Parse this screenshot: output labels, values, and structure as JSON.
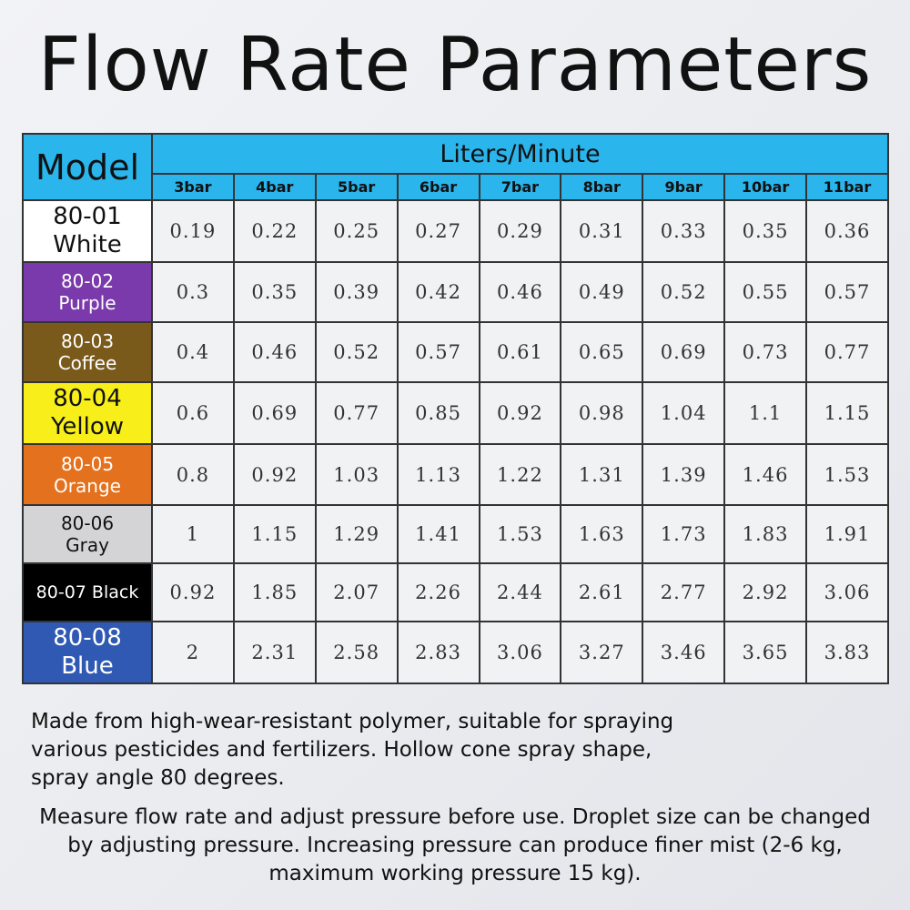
{
  "title": "Flow Rate Parameters",
  "table": {
    "model_header": "Model",
    "unit_header": "Liters/Minute",
    "pressures": [
      "3bar",
      "4bar",
      "5bar",
      "6bar",
      "7bar",
      "8bar",
      "9bar",
      "10bar",
      "11bar"
    ],
    "rows": [
      {
        "model": "80-01",
        "color": "White",
        "bg": "#ffffff",
        "fg": "#111111",
        "values": [
          "0.19",
          "0.22",
          "0.25",
          "0.27",
          "0.29",
          "0.31",
          "0.33",
          "0.35",
          "0.36"
        ]
      },
      {
        "model": "80-02",
        "color": "Purple",
        "bg": "#7b3aab",
        "fg": "#ffffff",
        "values": [
          "0.3",
          "0.35",
          "0.39",
          "0.42",
          "0.46",
          "0.49",
          "0.52",
          "0.55",
          "0.57"
        ]
      },
      {
        "model": "80-03",
        "color": "Coffee",
        "bg": "#7a5a1a",
        "fg": "#ffffff",
        "values": [
          "0.4",
          "0.46",
          "0.52",
          "0.57",
          "0.61",
          "0.65",
          "0.69",
          "0.73",
          "0.77"
        ]
      },
      {
        "model": "80-04",
        "color": "Yellow",
        "bg": "#f7ee1a",
        "fg": "#111111",
        "values": [
          "0.6",
          "0.69",
          "0.77",
          "0.85",
          "0.92",
          "0.98",
          "1.04",
          "1.1",
          "1.15"
        ]
      },
      {
        "model": "80-05",
        "color": "Orange",
        "bg": "#e4711e",
        "fg": "#ffffff",
        "values": [
          "0.8",
          "0.92",
          "1.03",
          "1.13",
          "1.22",
          "1.31",
          "1.39",
          "1.46",
          "1.53"
        ]
      },
      {
        "model": "80-06",
        "color": "Gray",
        "bg": "#d4d4d6",
        "fg": "#111111",
        "values": [
          "1",
          "1.15",
          "1.29",
          "1.41",
          "1.53",
          "1.63",
          "1.73",
          "1.83",
          "1.91"
        ]
      },
      {
        "model": "80-07 Black",
        "color": "",
        "bg": "#000000",
        "fg": "#ffffff",
        "values": [
          "0.92",
          "1.85",
          "2.07",
          "2.26",
          "2.44",
          "2.61",
          "2.77",
          "2.92",
          "3.06"
        ]
      },
      {
        "model": "80-08",
        "color": "Blue",
        "bg": "#2f59b3",
        "fg": "#ffffff",
        "values": [
          "2",
          "2.31",
          "2.58",
          "2.83",
          "3.06",
          "3.27",
          "3.46",
          "3.65",
          "3.83"
        ]
      }
    ]
  },
  "description": "Made from high-wear-resistant polymer, suitable for spraying various pesticides and fertilizers. Hollow cone spray shape, spray angle 80 degrees.",
  "instructions": "Measure flow rate and adjust pressure before use. Droplet size can be changed by adjusting pressure. Increasing pressure can produce finer mist (2-6 kg, maximum working pressure 15 kg)."
}
